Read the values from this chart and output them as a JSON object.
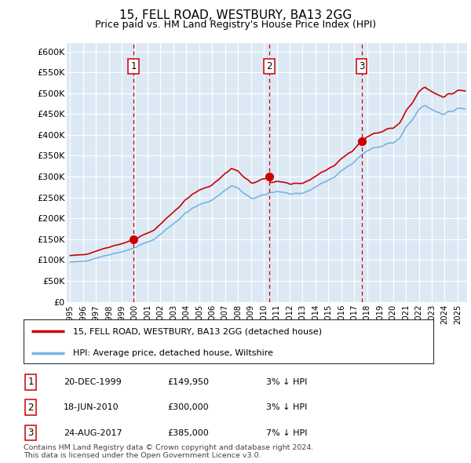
{
  "title": "15, FELL ROAD, WESTBURY, BA13 2GG",
  "subtitle": "Price paid vs. HM Land Registry's House Price Index (HPI)",
  "ylabel_ticks": [
    "£0",
    "£50K",
    "£100K",
    "£150K",
    "£200K",
    "£250K",
    "£300K",
    "£350K",
    "£400K",
    "£450K",
    "£500K",
    "£550K",
    "£600K"
  ],
  "ytick_values": [
    0,
    50000,
    100000,
    150000,
    200000,
    250000,
    300000,
    350000,
    400000,
    450000,
    500000,
    550000,
    600000
  ],
  "ylim": [
    0,
    620000
  ],
  "sale_prices": [
    149950,
    300000,
    385000
  ],
  "sale_labels": [
    "1",
    "2",
    "3"
  ],
  "sale_info": [
    {
      "label": "1",
      "date": "20-DEC-1999",
      "price": "£149,950",
      "pct": "3%",
      "dir": "↓",
      "vs": "HPI"
    },
    {
      "label": "2",
      "date": "18-JUN-2010",
      "price": "£300,000",
      "pct": "3%",
      "dir": "↓",
      "vs": "HPI"
    },
    {
      "label": "3",
      "date": "24-AUG-2017",
      "price": "£385,000",
      "pct": "7%",
      "dir": "↓",
      "vs": "HPI"
    }
  ],
  "legend_line1": "15, FELL ROAD, WESTBURY, BA13 2GG (detached house)",
  "legend_line2": "HPI: Average price, detached house, Wiltshire",
  "footer1": "Contains HM Land Registry data © Crown copyright and database right 2024.",
  "footer2": "This data is licensed under the Open Government Licence v3.0.",
  "hpi_color": "#7ab3e0",
  "price_color": "#cc0000",
  "sale_vline_color": "#cc0000",
  "background_color": "#dce9f5",
  "grid_color": "#ffffff",
  "label_box_color": "#cc0000"
}
